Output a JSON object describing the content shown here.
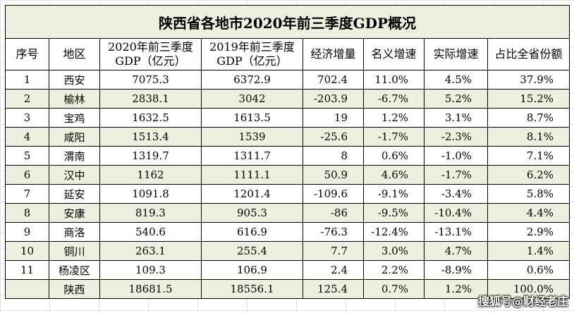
{
  "title": "陕西省各地市2020年前三季度GDP概况",
  "headers": {
    "seq": "序号",
    "region": "地区",
    "gdp2020_l1": "2020年前三季度",
    "gdp2020_l2": "GDP（亿元）",
    "gdp2019_l1": "2019年前三季度",
    "gdp2019_l2": "GDP（亿元）",
    "growth": "经济增量",
    "nominal": "名义增速",
    "real": "实际增速",
    "share": "占比全省份额"
  },
  "rows": [
    {
      "seq": "1",
      "region": "西安",
      "gdp2020": "7075.3",
      "gdp2019": "6372.9",
      "growth": "702.4",
      "nominal": "11.0%",
      "real": "4.5%",
      "share": "37.9%"
    },
    {
      "seq": "2",
      "region": "榆林",
      "gdp2020": "2838.1",
      "gdp2019": "3042",
      "growth": "-203.9",
      "nominal": "-6.7%",
      "real": "5.2%",
      "share": "15.2%"
    },
    {
      "seq": "3",
      "region": "宝鸡",
      "gdp2020": "1632.5",
      "gdp2019": "1613.5",
      "growth": "19",
      "nominal": "1.2%",
      "real": "3.1%",
      "share": "8.7%"
    },
    {
      "seq": "4",
      "region": "咸阳",
      "gdp2020": "1513.4",
      "gdp2019": "1539",
      "growth": "-25.6",
      "nominal": "-1.7%",
      "real": "-2.3%",
      "share": "8.1%"
    },
    {
      "seq": "5",
      "region": "渭南",
      "gdp2020": "1319.7",
      "gdp2019": "1311.7",
      "growth": "8",
      "nominal": "0.6%",
      "real": "-1.0%",
      "share": "7.1%"
    },
    {
      "seq": "6",
      "region": "汉中",
      "gdp2020": "1162",
      "gdp2019": "1111.1",
      "growth": "50.9",
      "nominal": "4.6%",
      "real": "-1.7%",
      "share": "6.2%"
    },
    {
      "seq": "7",
      "region": "延安",
      "gdp2020": "1091.8",
      "gdp2019": "1201.4",
      "growth": "-109.6",
      "nominal": "-9.1%",
      "real": "-3.4%",
      "share": "5.8%"
    },
    {
      "seq": "8",
      "region": "安康",
      "gdp2020": "819.3",
      "gdp2019": "905.3",
      "growth": "-86",
      "nominal": "-9.5%",
      "real": "-10.4%",
      "share": "4.4%"
    },
    {
      "seq": "9",
      "region": "商洛",
      "gdp2020": "540.6",
      "gdp2019": "616.9",
      "growth": "-76.3",
      "nominal": "-12.4%",
      "real": "-13.1%",
      "share": "2.9%"
    },
    {
      "seq": "10",
      "region": "铜川",
      "gdp2020": "263.1",
      "gdp2019": "255.4",
      "growth": "7.7",
      "nominal": "3.0%",
      "real": "4.7%",
      "share": "1.4%"
    },
    {
      "seq": "11",
      "region": "杨凌区",
      "gdp2020": "109.3",
      "gdp2019": "106.9",
      "growth": "2.4",
      "nominal": "2.2%",
      "real": "-8.9%",
      "share": "0.6%"
    },
    {
      "seq": "",
      "region": "陕西",
      "gdp2020": "18681.5",
      "gdp2019": "18556.1",
      "growth": "125.4",
      "nominal": "0.7%",
      "real": "1.2%",
      "share": "100.0%"
    }
  ],
  "watermark": "搜狐号@财经老庄",
  "colors": {
    "header_fill": "#ebf1de",
    "band_fill": "#ebf1de",
    "border": "#000000"
  }
}
